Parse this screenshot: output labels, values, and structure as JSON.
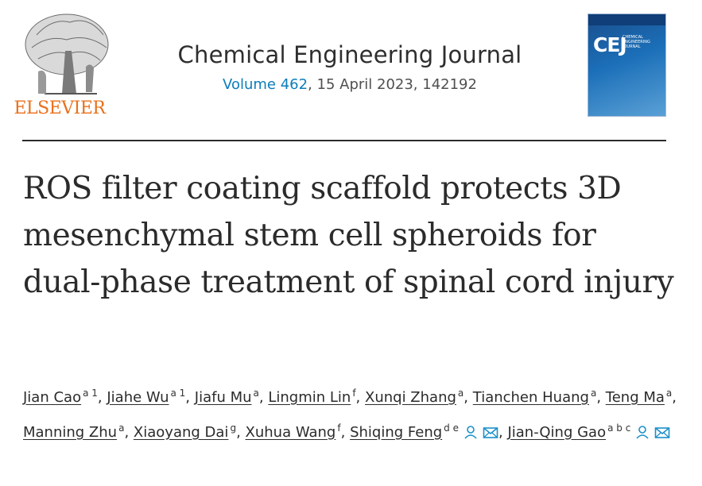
{
  "header": {
    "publisher": "ELSEVIER",
    "journal_name": "Chemical Engineering Journal",
    "volume_label": "Volume 462",
    "issue_rest": ", 15 April 2023, 142192",
    "cover": {
      "abbr": "CEJ",
      "full": "Chemical Engineering Journal"
    }
  },
  "article": {
    "title": "ROS filter coating scaffold protects 3D mesenchymal stem cell spheroids for dual-phase treatment of spinal cord injury"
  },
  "authors": [
    {
      "name": "Jian Cao",
      "aff": "a 1",
      "sep": ","
    },
    {
      "name": "Jiahe Wu",
      "aff": "a 1",
      "sep": ","
    },
    {
      "name": "Jiafu Mu",
      "aff": "a",
      "sep": ","
    },
    {
      "name": "Lingmin Lin",
      "aff": "f",
      "sep": ","
    },
    {
      "name": "Xunqi Zhang",
      "aff": "a",
      "sep": ","
    },
    {
      "name": "Tianchen Huang",
      "aff": "a",
      "sep": ","
    },
    {
      "name": "Teng Ma",
      "aff": "a",
      "sep": ","
    },
    {
      "name": "Manning Zhu",
      "aff": "a",
      "sep": ","
    },
    {
      "name": "Xiaoyang Dai",
      "aff": "g",
      "sep": ","
    },
    {
      "name": "Xuhua Wang",
      "aff": "f",
      "sep": ","
    },
    {
      "name": "Shiqing Feng",
      "aff": "d e",
      "sep": ","
    },
    {
      "name": "Jian-Qing Gao",
      "aff": "a b c",
      "sep": ""
    }
  ],
  "icons": {
    "person": "person-icon",
    "mail": "envelope-icon"
  },
  "colors": {
    "publisher_orange": "#e9711c",
    "link_blue": "#0c7dbb",
    "icon_teal": "#1a8fc9"
  }
}
